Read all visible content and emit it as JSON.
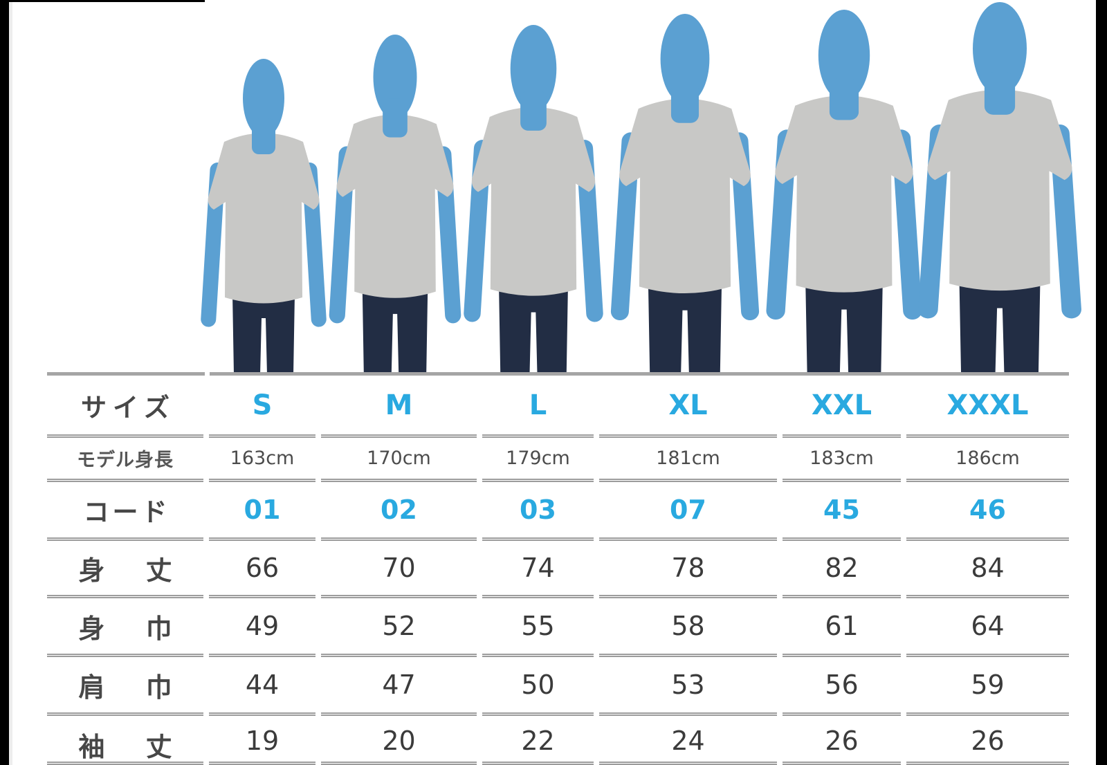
{
  "figure": {
    "sizes": [
      "S",
      "M",
      "L",
      "XL",
      "XXL",
      "XXXL"
    ],
    "silhouette_color": "#5ba0d2",
    "shirt_color": "#c8c8c6",
    "jeans_color": "#222d44"
  },
  "chart_data": {
    "type": "table",
    "title": "T-shirt size chart",
    "accent_color": "#29a9e0",
    "text_color": "#3b3b3b",
    "border_color": "#9c9c9c",
    "columns": [
      "サイズ",
      "S",
      "M",
      "L",
      "XL",
      "XXL",
      "XXXL"
    ],
    "rows": [
      {
        "label": "サイズ",
        "values": [
          "S",
          "M",
          "L",
          "XL",
          "XXL",
          "XXXL"
        ]
      },
      {
        "label": "モデル身長",
        "values": [
          "163cm",
          "170cm",
          "179cm",
          "181cm",
          "183cm",
          "186cm"
        ]
      },
      {
        "label": "コード",
        "values": [
          "01",
          "02",
          "03",
          "07",
          "45",
          "46"
        ]
      },
      {
        "label": "身 丈",
        "values": [
          "66",
          "70",
          "74",
          "78",
          "82",
          "84"
        ]
      },
      {
        "label": "身 巾",
        "values": [
          "49",
          "52",
          "55",
          "58",
          "61",
          "64"
        ]
      },
      {
        "label": "肩 巾",
        "values": [
          "44",
          "47",
          "50",
          "53",
          "56",
          "59"
        ]
      },
      {
        "label": "袖 丈",
        "values": [
          "19",
          "20",
          "22",
          "24",
          "26",
          "26"
        ]
      }
    ]
  }
}
